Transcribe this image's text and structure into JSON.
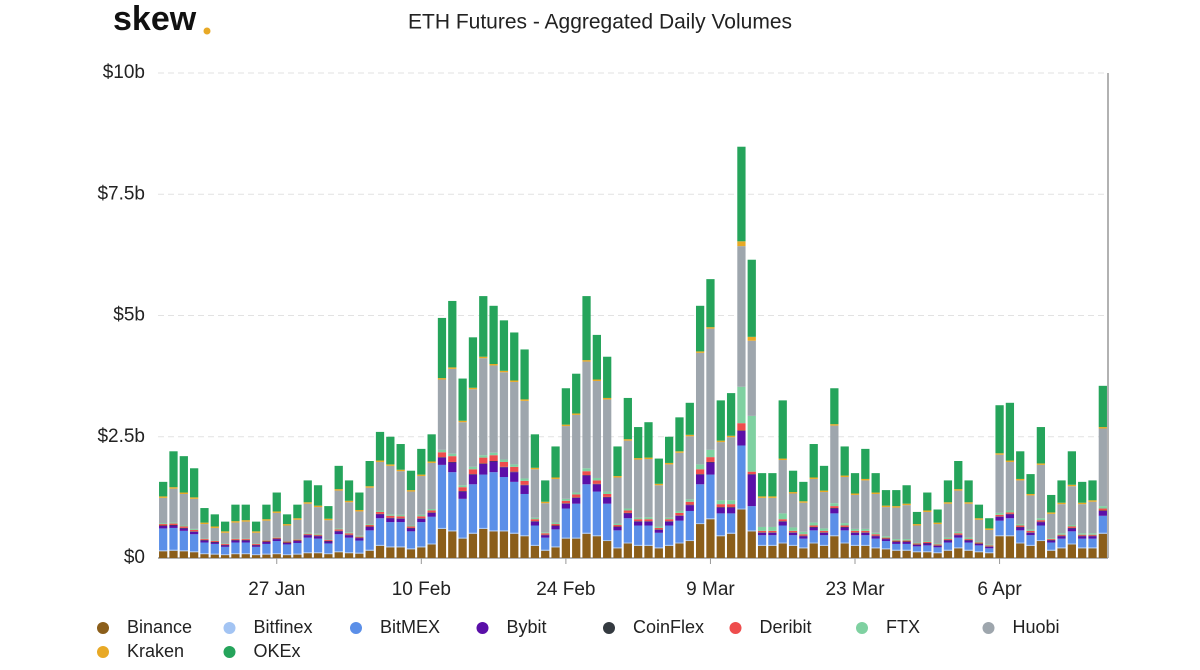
{
  "logo": "skew",
  "chart_data": {
    "type": "stacked_bar",
    "title": "ETH Futures - Aggregated Daily Volumes",
    "categories": [
      null,
      null,
      null,
      null,
      null,
      null,
      null,
      null,
      null,
      null,
      null,
      "27 Jan",
      null,
      null,
      null,
      null,
      null,
      null,
      null,
      null,
      null,
      null,
      null,
      null,
      null,
      "10 Feb",
      null,
      null,
      null,
      null,
      null,
      null,
      null,
      null,
      null,
      null,
      null,
      null,
      null,
      "24 Feb",
      null,
      null,
      null,
      null,
      null,
      null,
      null,
      null,
      null,
      null,
      null,
      null,
      null,
      "9 Mar",
      null,
      null,
      null,
      null,
      null,
      null,
      null,
      null,
      null,
      null,
      null,
      null,
      null,
      "23 Mar",
      null,
      null,
      null,
      null,
      null,
      null,
      null,
      null,
      null,
      null,
      null,
      null,
      null,
      "6 Apr",
      null,
      null,
      null,
      null,
      null,
      null,
      null,
      null,
      null,
      null
    ],
    "ylim": [
      0,
      10
    ],
    "yticks": [
      {
        "value": 0,
        "label": "$0"
      },
      {
        "value": 2.5,
        "label": "$2.5b"
      },
      {
        "value": 5,
        "label": "$5b"
      },
      {
        "value": 7.5,
        "label": "$7.5b"
      },
      {
        "value": 10,
        "label": "$10b"
      }
    ],
    "grid": true,
    "series": [
      {
        "name": "Binance",
        "color": "#8b5e1a",
        "values": [
          0.14,
          0.15,
          0.14,
          0.12,
          0.08,
          0.07,
          0.06,
          0.08,
          0.08,
          0.06,
          0.07,
          0.08,
          0.06,
          0.07,
          0.1,
          0.1,
          0.08,
          0.12,
          0.1,
          0.09,
          0.15,
          0.25,
          0.22,
          0.22,
          0.18,
          0.22,
          0.28,
          0.6,
          0.55,
          0.4,
          0.5,
          0.6,
          0.55,
          0.55,
          0.5,
          0.45,
          0.25,
          0.15,
          0.22,
          0.4,
          0.4,
          0.5,
          0.45,
          0.35,
          0.2,
          0.3,
          0.25,
          0.25,
          0.2,
          0.25,
          0.3,
          0.35,
          0.7,
          0.8,
          0.45,
          0.5,
          1.0,
          0.55,
          0.25,
          0.25,
          0.3,
          0.25,
          0.2,
          0.3,
          0.25,
          0.45,
          0.3,
          0.25,
          0.25,
          0.2,
          0.18,
          0.15,
          0.15,
          0.12,
          0.12,
          0.1,
          0.15,
          0.2,
          0.15,
          0.12,
          0.1,
          0.45,
          0.45,
          0.3,
          0.25,
          0.35,
          0.15,
          0.2,
          0.28,
          0.2,
          0.2,
          0.5
        ]
      },
      {
        "name": "Bitfinex",
        "color": "#a3c4f3",
        "values": [
          0.02,
          0.02,
          0.02,
          0.02,
          0.02,
          0.02,
          0.02,
          0.02,
          0.02,
          0.02,
          0.02,
          0.02,
          0.02,
          0.02,
          0.02,
          0.02,
          0.02,
          0.02,
          0.02,
          0.02,
          0.02,
          0.02,
          0.02,
          0.02,
          0.02,
          0.02,
          0.02,
          0.02,
          0.02,
          0.02,
          0.02,
          0.02,
          0.02,
          0.02,
          0.02,
          0.02,
          0.02,
          0.02,
          0.02,
          0.02,
          0.02,
          0.02,
          0.02,
          0.02,
          0.02,
          0.02,
          0.02,
          0.02,
          0.02,
          0.02,
          0.02,
          0.02,
          0.02,
          0.02,
          0.02,
          0.02,
          0.02,
          0.02,
          0.02,
          0.02,
          0.02,
          0.02,
          0.02,
          0.02,
          0.02,
          0.02,
          0.02,
          0.02,
          0.02,
          0.02,
          0.02,
          0.02,
          0.02,
          0.02,
          0.02,
          0.02,
          0.02,
          0.02,
          0.02,
          0.02,
          0.02,
          0.02,
          0.02,
          0.02,
          0.02,
          0.02,
          0.02,
          0.02,
          0.02,
          0.02,
          0.02,
          0.02
        ]
      },
      {
        "name": "BitMEX",
        "color": "#5b8fe8",
        "values": [
          0.45,
          0.45,
          0.4,
          0.35,
          0.22,
          0.2,
          0.15,
          0.22,
          0.22,
          0.15,
          0.2,
          0.25,
          0.2,
          0.22,
          0.3,
          0.28,
          0.2,
          0.35,
          0.3,
          0.25,
          0.4,
          0.55,
          0.5,
          0.5,
          0.35,
          0.5,
          0.55,
          1.3,
          1.2,
          0.8,
          1.0,
          1.1,
          1.2,
          1.1,
          1.05,
          0.85,
          0.4,
          0.25,
          0.35,
          0.6,
          0.7,
          1.0,
          0.9,
          0.75,
          0.35,
          0.5,
          0.4,
          0.4,
          0.3,
          0.4,
          0.45,
          0.6,
          0.8,
          0.9,
          0.45,
          0.4,
          1.3,
          0.5,
          0.2,
          0.2,
          0.35,
          0.2,
          0.18,
          0.25,
          0.2,
          0.45,
          0.25,
          0.2,
          0.2,
          0.18,
          0.15,
          0.12,
          0.12,
          0.1,
          0.12,
          0.1,
          0.15,
          0.2,
          0.15,
          0.12,
          0.08,
          0.3,
          0.35,
          0.25,
          0.2,
          0.3,
          0.15,
          0.18,
          0.25,
          0.18,
          0.18,
          0.35
        ]
      },
      {
        "name": "Bybit",
        "color": "#5a0fa8",
        "values": [
          0.05,
          0.05,
          0.05,
          0.05,
          0.04,
          0.03,
          0.03,
          0.04,
          0.04,
          0.03,
          0.04,
          0.04,
          0.03,
          0.04,
          0.05,
          0.05,
          0.04,
          0.06,
          0.05,
          0.05,
          0.07,
          0.08,
          0.08,
          0.07,
          0.06,
          0.07,
          0.08,
          0.15,
          0.2,
          0.15,
          0.2,
          0.22,
          0.22,
          0.2,
          0.2,
          0.18,
          0.08,
          0.05,
          0.07,
          0.1,
          0.12,
          0.18,
          0.15,
          0.13,
          0.07,
          0.1,
          0.08,
          0.08,
          0.06,
          0.08,
          0.1,
          0.12,
          0.2,
          0.25,
          0.12,
          0.12,
          0.3,
          0.65,
          0.05,
          0.05,
          0.08,
          0.05,
          0.05,
          0.06,
          0.05,
          0.1,
          0.06,
          0.05,
          0.05,
          0.05,
          0.04,
          0.04,
          0.04,
          0.03,
          0.04,
          0.03,
          0.04,
          0.05,
          0.04,
          0.03,
          0.03,
          0.08,
          0.08,
          0.06,
          0.05,
          0.07,
          0.04,
          0.05,
          0.06,
          0.05,
          0.05,
          0.1
        ]
      },
      {
        "name": "CoinFlex",
        "color": "#343a40",
        "values": [
          0.01,
          0.01,
          0.01,
          0.01,
          0.01,
          0.01,
          0.01,
          0.01,
          0.01,
          0.01,
          0.01,
          0.01,
          0.01,
          0.01,
          0.01,
          0.01,
          0.01,
          0.01,
          0.01,
          0.01,
          0.01,
          0.01,
          0.01,
          0.01,
          0.01,
          0.01,
          0.01,
          0.01,
          0.01,
          0.01,
          0.01,
          0.01,
          0.01,
          0.01,
          0.01,
          0.01,
          0.01,
          0.01,
          0.01,
          0.01,
          0.01,
          0.01,
          0.01,
          0.01,
          0.01,
          0.01,
          0.01,
          0.01,
          0.01,
          0.01,
          0.01,
          0.01,
          0.01,
          0.01,
          0.01,
          0.01,
          0.01,
          0.01,
          0.01,
          0.01,
          0.01,
          0.01,
          0.01,
          0.01,
          0.01,
          0.01,
          0.01,
          0.01,
          0.01,
          0.01,
          0.01,
          0.01,
          0.01,
          0.01,
          0.01,
          0.01,
          0.01,
          0.01,
          0.01,
          0.01,
          0.01,
          0.01,
          0.01,
          0.01,
          0.01,
          0.01,
          0.01,
          0.01,
          0.01,
          0.01,
          0.01,
          0.01
        ]
      },
      {
        "name": "Deribit",
        "color": "#ee4d4d",
        "values": [
          0.03,
          0.03,
          0.03,
          0.03,
          0.02,
          0.02,
          0.02,
          0.02,
          0.02,
          0.02,
          0.02,
          0.02,
          0.02,
          0.02,
          0.02,
          0.02,
          0.02,
          0.03,
          0.03,
          0.02,
          0.03,
          0.04,
          0.04,
          0.04,
          0.03,
          0.04,
          0.04,
          0.1,
          0.12,
          0.08,
          0.1,
          0.12,
          0.12,
          0.1,
          0.1,
          0.08,
          0.04,
          0.03,
          0.03,
          0.05,
          0.06,
          0.08,
          0.07,
          0.06,
          0.03,
          0.05,
          0.04,
          0.04,
          0.03,
          0.04,
          0.05,
          0.06,
          0.1,
          0.1,
          0.06,
          0.06,
          0.15,
          0.05,
          0.03,
          0.03,
          0.04,
          0.03,
          0.03,
          0.03,
          0.03,
          0.04,
          0.03,
          0.03,
          0.03,
          0.03,
          0.02,
          0.02,
          0.02,
          0.02,
          0.02,
          0.02,
          0.02,
          0.03,
          0.02,
          0.02,
          0.02,
          0.03,
          0.03,
          0.03,
          0.03,
          0.03,
          0.02,
          0.02,
          0.03,
          0.02,
          0.02,
          0.04
        ]
      },
      {
        "name": "FTX",
        "color": "#7fd1a1",
        "values": [
          0.02,
          0.02,
          0.02,
          0.02,
          0.01,
          0.01,
          0.01,
          0.01,
          0.01,
          0.01,
          0.01,
          0.01,
          0.01,
          0.01,
          0.02,
          0.02,
          0.01,
          0.02,
          0.02,
          0.02,
          0.02,
          0.03,
          0.03,
          0.03,
          0.02,
          0.03,
          0.03,
          0.05,
          0.05,
          0.04,
          0.05,
          0.05,
          0.05,
          0.05,
          0.05,
          0.05,
          0.03,
          0.02,
          0.03,
          0.04,
          0.04,
          0.06,
          0.05,
          0.05,
          0.03,
          0.04,
          0.03,
          0.04,
          0.03,
          0.03,
          0.04,
          0.05,
          0.1,
          0.15,
          0.08,
          0.08,
          0.75,
          1.15,
          0.08,
          0.08,
          0.12,
          0.07,
          0.05,
          0.06,
          0.05,
          0.06,
          0.05,
          0.04,
          0.04,
          0.03,
          0.03,
          0.03,
          0.03,
          0.02,
          0.02,
          0.02,
          0.03,
          0.03,
          0.03,
          0.02,
          0.02,
          0.04,
          0.04,
          0.03,
          0.03,
          0.04,
          0.02,
          0.03,
          0.03,
          0.03,
          0.03,
          0.05
        ]
      },
      {
        "name": "Huobi",
        "color": "#9ea6ad",
        "values": [
          0.52,
          0.7,
          0.65,
          0.62,
          0.3,
          0.26,
          0.22,
          0.33,
          0.35,
          0.22,
          0.4,
          0.5,
          0.32,
          0.4,
          0.6,
          0.55,
          0.4,
          0.78,
          0.62,
          0.5,
          0.75,
          1.0,
          1.0,
          0.9,
          0.7,
          0.8,
          0.95,
          1.45,
          1.75,
          1.3,
          1.6,
          2.0,
          1.8,
          1.8,
          1.7,
          1.6,
          1.0,
          0.6,
          0.9,
          1.5,
          1.6,
          2.2,
          2.0,
          1.9,
          0.95,
          1.4,
          1.2,
          1.2,
          0.85,
          1.1,
          1.2,
          1.3,
          2.3,
          2.5,
          1.2,
          1.3,
          2.9,
          1.55,
          0.6,
          0.6,
          1.1,
          0.7,
          0.6,
          0.9,
          0.75,
          1.6,
          0.95,
          0.7,
          1.0,
          0.8,
          0.6,
          0.65,
          0.7,
          0.35,
          0.6,
          0.4,
          0.7,
          0.85,
          0.7,
          0.45,
          0.3,
          1.2,
          1.0,
          0.9,
          0.7,
          1.1,
          0.5,
          0.6,
          0.8,
          0.6,
          0.65,
          1.6
        ]
      },
      {
        "name": "Kraken",
        "color": "#e8a926",
        "values": [
          0.03,
          0.03,
          0.03,
          0.03,
          0.03,
          0.03,
          0.03,
          0.03,
          0.03,
          0.03,
          0.03,
          0.03,
          0.03,
          0.03,
          0.03,
          0.03,
          0.03,
          0.03,
          0.03,
          0.03,
          0.03,
          0.03,
          0.03,
          0.03,
          0.03,
          0.03,
          0.03,
          0.03,
          0.03,
          0.03,
          0.03,
          0.03,
          0.03,
          0.03,
          0.03,
          0.03,
          0.03,
          0.03,
          0.03,
          0.03,
          0.03,
          0.03,
          0.03,
          0.03,
          0.03,
          0.03,
          0.03,
          0.03,
          0.03,
          0.03,
          0.03,
          0.03,
          0.03,
          0.03,
          0.03,
          0.03,
          0.1,
          0.08,
          0.03,
          0.03,
          0.03,
          0.03,
          0.03,
          0.03,
          0.03,
          0.03,
          0.03,
          0.03,
          0.03,
          0.03,
          0.03,
          0.03,
          0.03,
          0.03,
          0.03,
          0.03,
          0.03,
          0.03,
          0.03,
          0.03,
          0.03,
          0.03,
          0.03,
          0.03,
          0.03,
          0.03,
          0.03,
          0.03,
          0.03,
          0.03,
          0.03,
          0.03
        ]
      },
      {
        "name": "OKEx",
        "color": "#25a45b",
        "values": [
          0.3,
          0.74,
          0.75,
          0.6,
          0.3,
          0.25,
          0.2,
          0.34,
          0.32,
          0.2,
          0.3,
          0.39,
          0.2,
          0.28,
          0.45,
          0.42,
          0.26,
          0.48,
          0.42,
          0.36,
          0.52,
          0.59,
          0.57,
          0.53,
          0.4,
          0.53,
          0.56,
          1.24,
          1.37,
          0.87,
          1.04,
          1.25,
          1.2,
          1.04,
          0.99,
          1.03,
          0.69,
          0.44,
          0.64,
          0.75,
          0.82,
          1.32,
          0.92,
          0.85,
          0.61,
          0.85,
          0.64,
          0.73,
          0.52,
          0.54,
          0.7,
          0.66,
          0.94,
          0.99,
          0.83,
          0.88,
          1.95,
          1.59,
          0.48,
          0.48,
          1.2,
          0.44,
          0.4,
          0.69,
          0.51,
          0.74,
          0.6,
          0.42,
          0.62,
          0.4,
          0.32,
          0.33,
          0.38,
          0.25,
          0.37,
          0.27,
          0.45,
          0.58,
          0.45,
          0.28,
          0.21,
          0.99,
          1.19,
          0.57,
          0.41,
          0.75,
          0.36,
          0.46,
          0.69,
          0.43,
          0.41,
          0.85
        ]
      }
    ]
  }
}
